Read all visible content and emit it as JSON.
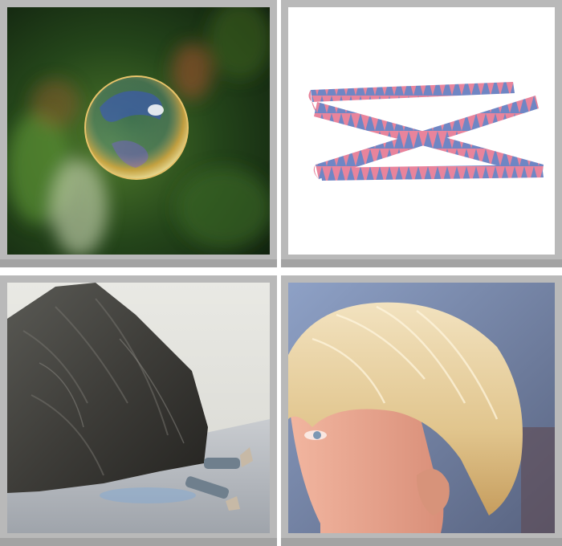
{
  "puzzle": {
    "images": [
      {
        "subject": "soap-bubble"
      },
      {
        "subject": "pink-blue-ribbon"
      },
      {
        "subject": "boulder-crushing-person"
      },
      {
        "subject": "blond-hair-profile"
      }
    ]
  },
  "colors": {
    "frame": "#b9b9b9",
    "frame_shadow": "#a3a3a3",
    "ribbon_pink": "#e8849c",
    "ribbon_blue": "#6f86c4"
  }
}
